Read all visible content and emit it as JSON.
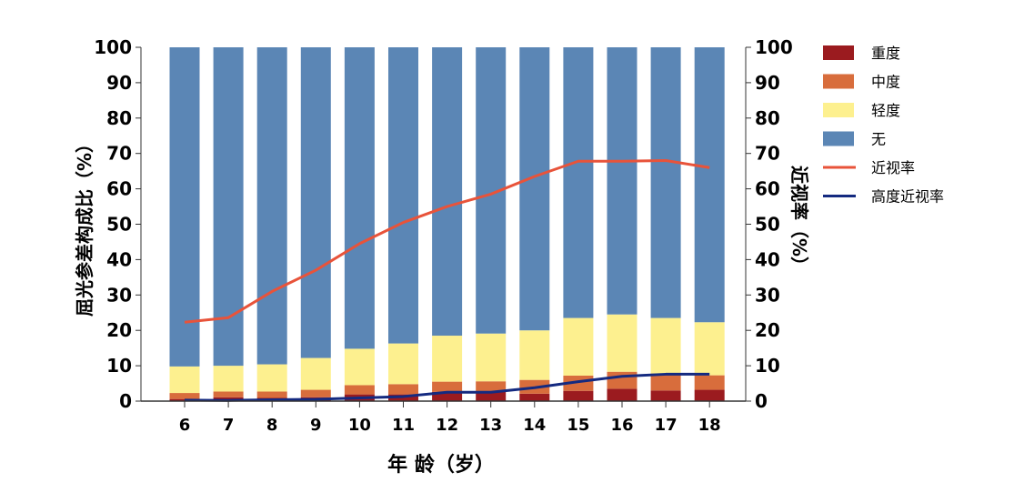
{
  "chart_data": {
    "type": "bar",
    "stacked": true,
    "xlabel": "年 龄（岁）",
    "ylabel": "屈光参差构成比（%）",
    "y2label": "近视率（%）",
    "ylim": [
      0,
      100
    ],
    "y2lim": [
      0,
      100
    ],
    "yticks": [
      0,
      10,
      20,
      30,
      40,
      50,
      60,
      70,
      80,
      90,
      100
    ],
    "categories": [
      "6",
      "7",
      "8",
      "9",
      "10",
      "11",
      "12",
      "13",
      "14",
      "15",
      "16",
      "17",
      "18"
    ],
    "series": [
      {
        "name": "重度",
        "kind": "bar",
        "color": "#9b1b1f",
        "values": [
          0.6,
          1.1,
          0.9,
          1.1,
          1.9,
          1.9,
          2.6,
          2.6,
          2.1,
          2.9,
          3.5,
          3.0,
          3.2
        ]
      },
      {
        "name": "中度",
        "kind": "bar",
        "color": "#d86d3c",
        "values": [
          1.7,
          1.6,
          1.8,
          2.1,
          2.6,
          2.9,
          2.9,
          3.0,
          3.9,
          4.3,
          4.8,
          4.8,
          4.1
        ]
      },
      {
        "name": "轻度",
        "kind": "bar",
        "color": "#fdf08f",
        "values": [
          7.5,
          7.3,
          7.7,
          9.0,
          10.3,
          11.5,
          13.0,
          13.5,
          14.0,
          16.3,
          16.2,
          15.7,
          15.0
        ]
      },
      {
        "name": "无",
        "kind": "bar",
        "color": "#5b86b5",
        "values": [
          90.2,
          90.0,
          89.6,
          87.8,
          85.2,
          83.7,
          81.5,
          80.9,
          80.0,
          76.5,
          75.5,
          76.5,
          77.7
        ]
      },
      {
        "name": "近视率",
        "kind": "line",
        "color": "#e8533a",
        "values": [
          22.3,
          23.6,
          31.0,
          37.0,
          44.5,
          50.5,
          55.0,
          58.5,
          63.5,
          67.8,
          67.8,
          68.0,
          66.0
        ]
      },
      {
        "name": "高度近视率",
        "kind": "line",
        "color": "#142a80",
        "values": [
          0.3,
          0.2,
          0.4,
          0.5,
          0.9,
          1.3,
          2.5,
          2.5,
          3.8,
          5.5,
          7.0,
          7.6,
          7.6
        ]
      }
    ],
    "legend_position": "right",
    "grid": false
  }
}
